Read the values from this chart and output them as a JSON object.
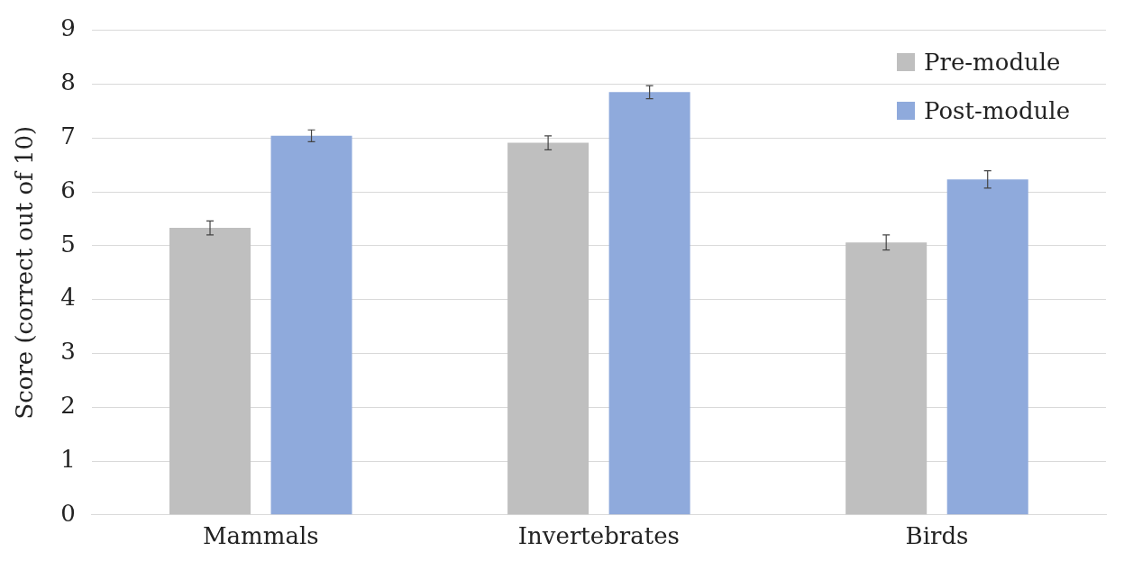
{
  "chart_data": {
    "type": "bar",
    "ylabel": "Score (correct out of 10)",
    "categories": [
      "Mammals",
      "Invertebrates",
      "Birds"
    ],
    "series": [
      {
        "name": "Pre-module",
        "color": "#bfbfbf",
        "values": [
          5.33,
          6.91,
          5.06
        ],
        "errors": [
          0.13,
          0.13,
          0.14
        ]
      },
      {
        "name": "Post-module",
        "color": "#8faadc",
        "values": [
          7.04,
          7.85,
          6.23
        ],
        "errors": [
          0.11,
          0.12,
          0.16
        ]
      }
    ],
    "ylim": [
      0,
      9
    ],
    "yticks": [
      0,
      1,
      2,
      3,
      4,
      5,
      6,
      7,
      8,
      9
    ],
    "grid": "y",
    "legend": "top right"
  }
}
